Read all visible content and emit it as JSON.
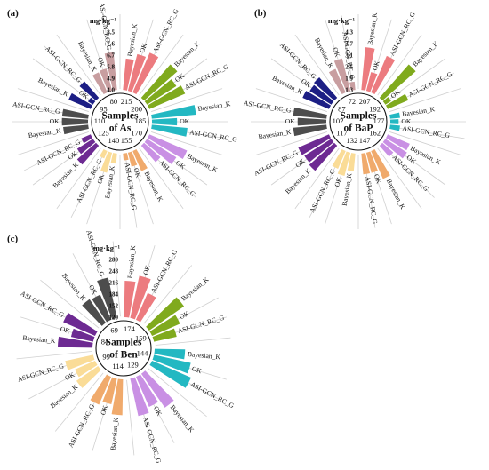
{
  "colors": {
    "pink": "#ec7b7f",
    "green": "#80aa1d",
    "cyan": "#23b8c2",
    "lavender": "#c990e4",
    "orange": "#f0aa6c",
    "yellow": "#fadc97",
    "purple": "#6d2a92",
    "darkgray": "#4d4d4d",
    "navy": "#1c1e84",
    "mauve": "#c89ea0"
  },
  "chart_data": [
    {
      "type": "radial-bar",
      "panel": "(a)",
      "center_label": [
        "Samples",
        "of As"
      ],
      "unit": "mg·kg⁻¹",
      "scale_ticks": [
        "4.0",
        "4.9",
        "5.8",
        "6.7",
        "7.6",
        "8.5"
      ],
      "ylim": [
        4.0,
        9.0
      ],
      "methods": [
        "Bayesian_K",
        "OK",
        "ASI-GCN_RC_G"
      ],
      "groups": [
        {
          "id": "215",
          "color": "pink",
          "values": [
            7.2,
            7.8,
            8.3
          ]
        },
        {
          "id": "200",
          "color": "green",
          "values": [
            8.4,
            7.5,
            7.9
          ]
        },
        {
          "id": "185",
          "color": "cyan",
          "values": [
            8.4,
            6.6,
            7.6
          ]
        },
        {
          "id": "170",
          "color": "lavender",
          "values": [
            8.1,
            7.5,
            6.3
          ]
        },
        {
          "id": "155",
          "color": "orange",
          "values": [
            6.3,
            5.6,
            4.9
          ]
        },
        {
          "id": "140",
          "color": "yellow",
          "values": [
            5.2,
            6.2,
            5.0
          ]
        },
        {
          "id": "125",
          "color": "purple",
          "values": [
            6.6,
            6.0,
            5.2
          ]
        },
        {
          "id": "110",
          "color": "darkgray",
          "values": [
            6.6,
            6.7,
            6.7
          ]
        },
        {
          "id": "95",
          "color": "navy",
          "values": [
            6.5,
            4.8,
            6.3
          ]
        },
        {
          "id": "80",
          "color": "mauve",
          "values": [
            6.3,
            6.4,
            7.8
          ]
        }
      ]
    },
    {
      "type": "radial-bar",
      "panel": "(b)",
      "center_label": [
        "Samples",
        "of BaP"
      ],
      "unit": "mg·kg⁻¹",
      "scale_ticks": [
        "1.3",
        "1.9",
        "2.5",
        "3.1",
        "3.7",
        "4.3"
      ],
      "ylim": [
        1.3,
        4.7
      ],
      "methods": [
        "Bayesian_K",
        "OK",
        "ASI-GCN_RC_G"
      ],
      "groups": [
        {
          "id": "207",
          "color": "pink",
          "values": [
            4.2,
            2.7,
            4.0
          ]
        },
        {
          "id": "192",
          "color": "green",
          "values": [
            4.3,
            1.9,
            2.9
          ]
        },
        {
          "id": "177",
          "color": "cyan",
          "values": [
            2.1,
            2.0,
            2.1
          ]
        },
        {
          "id": "162",
          "color": "lavender",
          "values": [
            3.0,
            3.1,
            2.4
          ]
        },
        {
          "id": "147",
          "color": "orange",
          "values": [
            3.4,
            2.8,
            2.8
          ]
        },
        {
          "id": "132",
          "color": "yellow",
          "values": [
            2.6,
            3.0,
            2.7
          ]
        },
        {
          "id": "117",
          "color": "purple",
          "values": [
            3.6,
            3.5,
            3.6
          ]
        },
        {
          "id": "102",
          "color": "darkgray",
          "values": [
            3.6,
            3.3,
            3.6
          ]
        },
        {
          "id": "87",
          "color": "navy",
          "values": [
            3.3,
            3.1,
            3.2
          ]
        },
        {
          "id": "72",
          "color": "mauve",
          "values": [
            3.1,
            3.6,
            2.0
          ]
        }
      ]
    },
    {
      "type": "radial-bar",
      "panel": "(c)",
      "center_label": [
        "Samples",
        "of Ben"
      ],
      "unit": "mg·kg⁻¹",
      "scale_ticks": [
        "120",
        "152",
        "184",
        "216",
        "248",
        "280"
      ],
      "ylim": [
        120,
        300
      ],
      "methods": [
        "Bayesian_K",
        "OK",
        "ASI-GCN_RC_G"
      ],
      "groups": [
        {
          "id": "174",
          "color": "pink",
          "values": [
            250,
            272,
            226
          ]
        },
        {
          "id": "159",
          "color": "green",
          "values": [
            270,
            230,
            206
          ]
        },
        {
          "id": "144",
          "color": "cyan",
          "values": [
            230,
            254,
            270
          ]
        },
        {
          "id": "129",
          "color": "lavender",
          "values": [
            266,
            238,
            256
          ]
        },
        {
          "id": "114",
          "color": "orange",
          "values": [
            248,
            216,
            230
          ]
        },
        {
          "id": "99",
          "color": "yellow",
          "values": [
            216,
            202,
            224
          ]
        },
        {
          "id": "84",
          "color": "purple",
          "values": [
            244,
            204,
            244
          ]
        },
        {
          "id": "69",
          "color": "darkgray",
          "values": [
            224,
            220,
            266
          ]
        }
      ]
    }
  ]
}
